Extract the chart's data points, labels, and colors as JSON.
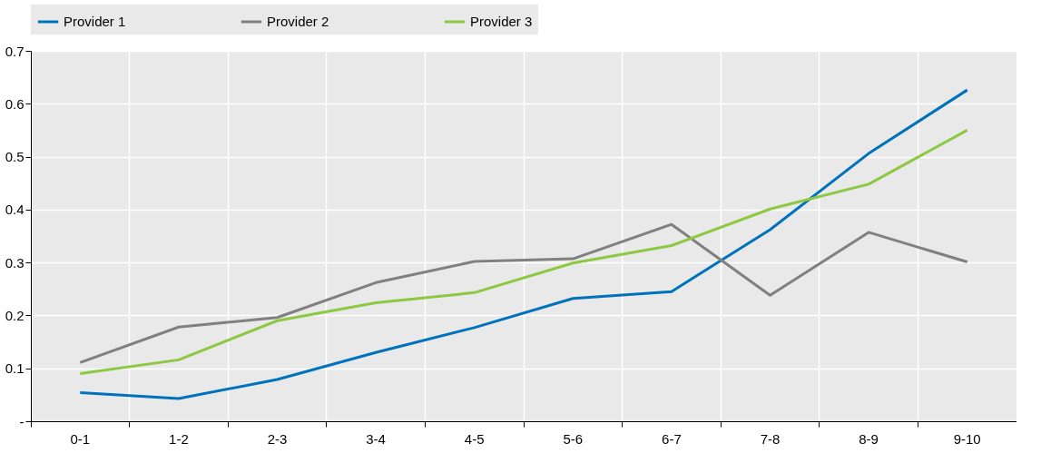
{
  "chart_data": {
    "type": "line",
    "categories": [
      "0-1",
      "1-2",
      "2-3",
      "3-4",
      "4-5",
      "5-6",
      "6-7",
      "7-8",
      "8-9",
      "9-10"
    ],
    "series": [
      {
        "name": "Provider 1",
        "color": "#0072bc",
        "values": [
          0.054,
          0.043,
          0.079,
          0.13,
          0.177,
          0.232,
          0.245,
          0.362,
          0.506,
          0.626
        ]
      },
      {
        "name": "Provider 2",
        "color": "#808080",
        "values": [
          0.111,
          0.178,
          0.196,
          0.262,
          0.302,
          0.307,
          0.372,
          0.238,
          0.357,
          0.301
        ]
      },
      {
        "name": "Provider 3",
        "color": "#8cc841",
        "values": [
          0.09,
          0.116,
          0.19,
          0.224,
          0.243,
          0.299,
          0.332,
          0.401,
          0.448,
          0.55
        ]
      }
    ],
    "ylim": [
      0,
      0.7
    ],
    "yticks": [
      {
        "value": 0,
        "label": "-"
      },
      0.1,
      0.2,
      0.3,
      0.4,
      0.5,
      0.6,
      0.7
    ],
    "grid": true,
    "legend": "top",
    "marker": "none",
    "line_style": "solid"
  }
}
